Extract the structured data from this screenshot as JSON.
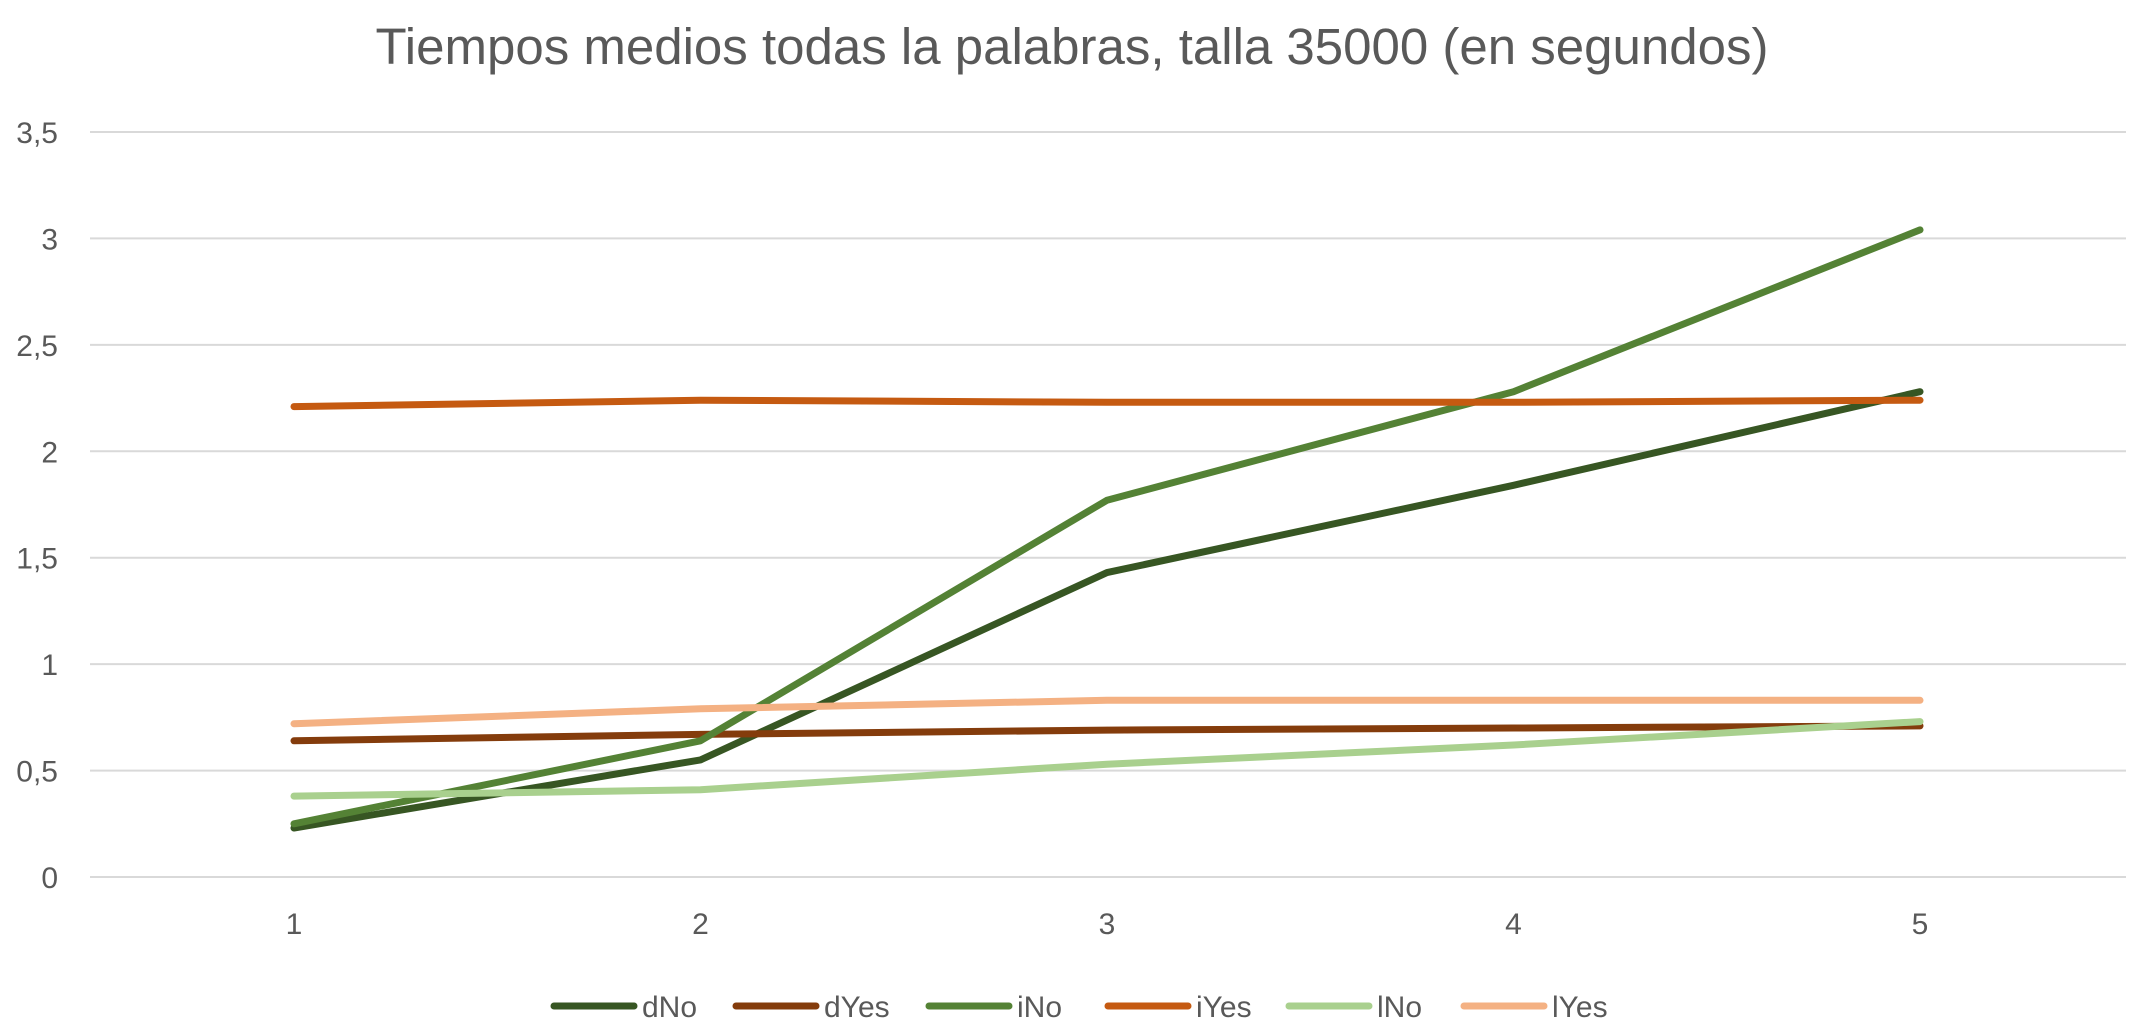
{
  "chart_data": {
    "type": "line",
    "title": "Tiempos medios todas la palabras, talla 35000 (en segundos)",
    "xlabel": "",
    "ylabel": "",
    "x": [
      "1",
      "2",
      "3",
      "4",
      "5"
    ],
    "ylim": [
      0,
      3.5
    ],
    "yticks": [
      {
        "value": 0,
        "label": "0"
      },
      {
        "value": 0.5,
        "label": "0,5"
      },
      {
        "value": 1,
        "label": "1"
      },
      {
        "value": 1.5,
        "label": "1,5"
      },
      {
        "value": 2,
        "label": "2"
      },
      {
        "value": 2.5,
        "label": "2,5"
      },
      {
        "value": 3,
        "label": "3"
      },
      {
        "value": 3.5,
        "label": "3,5"
      }
    ],
    "grid": true,
    "legend_position": "bottom",
    "series": [
      {
        "name": "dNo",
        "color": "#375623",
        "values": [
          0.23,
          0.55,
          1.43,
          1.84,
          2.28
        ]
      },
      {
        "name": "dYes",
        "color": "#843C0C",
        "values": [
          0.64,
          0.67,
          0.69,
          0.7,
          0.71
        ]
      },
      {
        "name": "iNo",
        "color": "#548235",
        "values": [
          0.25,
          0.64,
          1.77,
          2.28,
          3.04
        ]
      },
      {
        "name": "iYes",
        "color": "#C55A11",
        "values": [
          2.21,
          2.24,
          2.23,
          2.23,
          2.24
        ]
      },
      {
        "name": "lNo",
        "color": "#A9D08E",
        "values": [
          0.38,
          0.41,
          0.53,
          0.62,
          0.73
        ]
      },
      {
        "name": "lYes",
        "color": "#F4B183",
        "values": [
          0.72,
          0.79,
          0.83,
          0.83,
          0.83
        ]
      }
    ]
  }
}
